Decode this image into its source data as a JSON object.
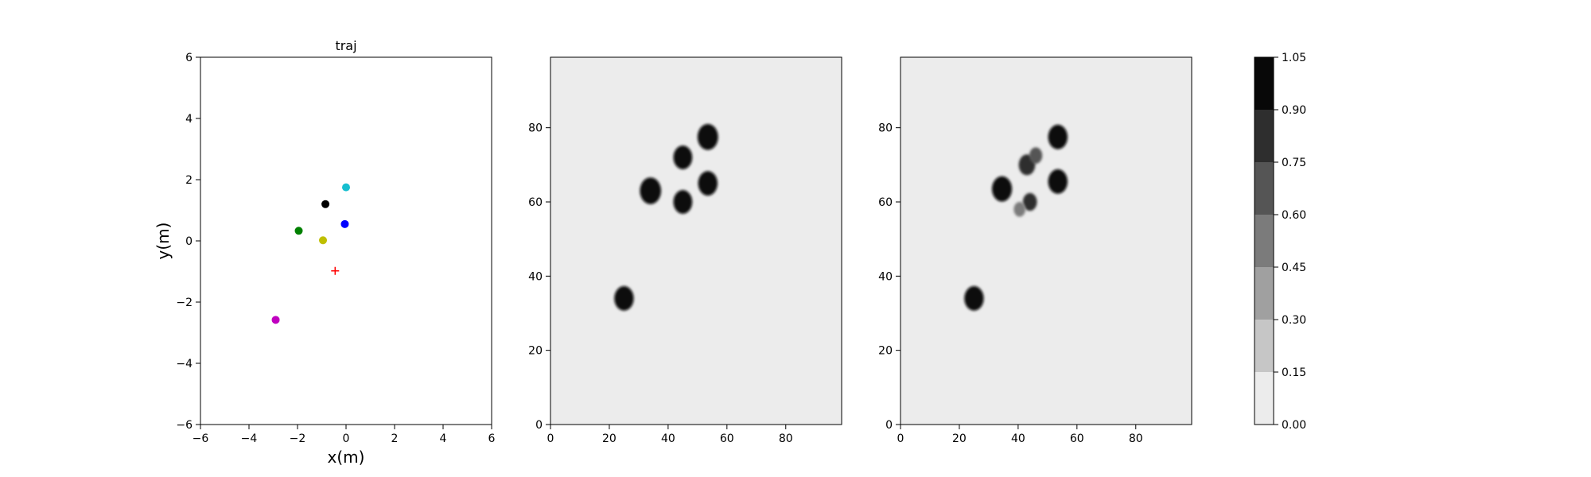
{
  "chart_data": [
    {
      "type": "scatter",
      "title": "traj",
      "xlabel": "x(m)",
      "ylabel": "y(m)",
      "xlim": [
        -6,
        6
      ],
      "ylim": [
        -6,
        6
      ],
      "xticks": [
        -6,
        -4,
        -2,
        0,
        2,
        4,
        6
      ],
      "yticks": [
        -6,
        -4,
        -2,
        0,
        2,
        4,
        6
      ],
      "xtick_labels": [
        "−6",
        "−4",
        "−2",
        "0",
        "2",
        "4",
        "6"
      ],
      "ytick_labels": [
        "−6",
        "−4",
        "−2",
        "0",
        "2",
        "4",
        "6"
      ],
      "grid": false,
      "points": [
        {
          "x": 0.0,
          "y": 1.75,
          "color": "#17becf",
          "marker": "circle"
        },
        {
          "x": -0.85,
          "y": 1.2,
          "color": "#000000",
          "marker": "circle"
        },
        {
          "x": -0.05,
          "y": 0.55,
          "color": "#0000ff",
          "marker": "circle"
        },
        {
          "x": -1.95,
          "y": 0.33,
          "color": "#008000",
          "marker": "circle"
        },
        {
          "x": -0.95,
          "y": 0.02,
          "color": "#bfbf00",
          "marker": "circle"
        },
        {
          "x": -0.45,
          "y": -0.98,
          "color": "#ff0000",
          "marker": "plus"
        },
        {
          "x": -2.9,
          "y": -2.58,
          "color": "#c000c0",
          "marker": "circle"
        }
      ]
    },
    {
      "type": "heatmap",
      "title": "",
      "xlim": [
        0,
        99
      ],
      "ylim": [
        0,
        99
      ],
      "xticks": [
        0,
        20,
        40,
        60,
        80
      ],
      "yticks": [
        0,
        20,
        40,
        60,
        80
      ],
      "xtick_labels": [
        "0",
        "20",
        "40",
        "60",
        "80"
      ],
      "ytick_labels": [
        "0",
        "20",
        "40",
        "60",
        "80"
      ],
      "background_level": 0.0,
      "blobs": [
        {
          "cx": 25,
          "cy": 34,
          "r": 3.3,
          "level": 1.0
        },
        {
          "cx": 34,
          "cy": 63,
          "r": 3.6,
          "level": 1.0
        },
        {
          "cx": 45,
          "cy": 60,
          "r": 3.2,
          "level": 1.0
        },
        {
          "cx": 45,
          "cy": 72,
          "r": 3.2,
          "level": 1.0
        },
        {
          "cx": 53.5,
          "cy": 65,
          "r": 3.3,
          "level": 1.0
        },
        {
          "cx": 53.5,
          "cy": 77.5,
          "r": 3.5,
          "level": 1.0
        }
      ]
    },
    {
      "type": "heatmap",
      "title": "",
      "xlim": [
        0,
        99
      ],
      "ylim": [
        0,
        99
      ],
      "xticks": [
        0,
        20,
        40,
        60,
        80
      ],
      "yticks": [
        0,
        20,
        40,
        60,
        80
      ],
      "xtick_labels": [
        "0",
        "20",
        "40",
        "60",
        "80"
      ],
      "ytick_labels": [
        "0",
        "20",
        "40",
        "60",
        "80"
      ],
      "background_level": 0.0,
      "blobs": [
        {
          "cx": 25,
          "cy": 34,
          "r": 3.3,
          "level": 1.0
        },
        {
          "cx": 34.5,
          "cy": 63.5,
          "r": 3.4,
          "level": 1.0
        },
        {
          "cx": 43,
          "cy": 70,
          "r": 2.8,
          "level": 0.85
        },
        {
          "cx": 46,
          "cy": 72.5,
          "r": 2.2,
          "level": 0.6
        },
        {
          "cx": 44,
          "cy": 60,
          "r": 2.4,
          "level": 0.75
        },
        {
          "cx": 40.5,
          "cy": 58,
          "r": 2.0,
          "level": 0.5
        },
        {
          "cx": 53.5,
          "cy": 65.5,
          "r": 3.3,
          "level": 1.0
        },
        {
          "cx": 53.5,
          "cy": 77.5,
          "r": 3.3,
          "level": 1.0
        }
      ]
    },
    {
      "type": "colorbar",
      "levels": [
        0.0,
        0.15,
        0.3,
        0.45,
        0.6,
        0.75,
        0.9,
        1.05
      ],
      "tick_labels": [
        "0.00",
        "0.15",
        "0.30",
        "0.45",
        "0.60",
        "0.75",
        "0.90",
        "1.05"
      ],
      "band_colors": [
        "#ececec",
        "#c6c6c6",
        "#a0a0a0",
        "#7b7b7b",
        "#555555",
        "#2e2e2e",
        "#080808"
      ]
    }
  ]
}
